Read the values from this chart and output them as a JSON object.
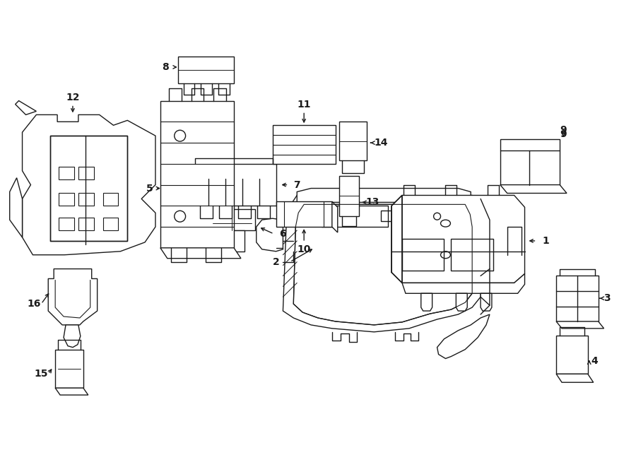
{
  "background_color": "#ffffff",
  "line_color": "#1a1a1a",
  "line_width": 1.0,
  "fig_width": 9.0,
  "fig_height": 6.61,
  "dpi": 100
}
